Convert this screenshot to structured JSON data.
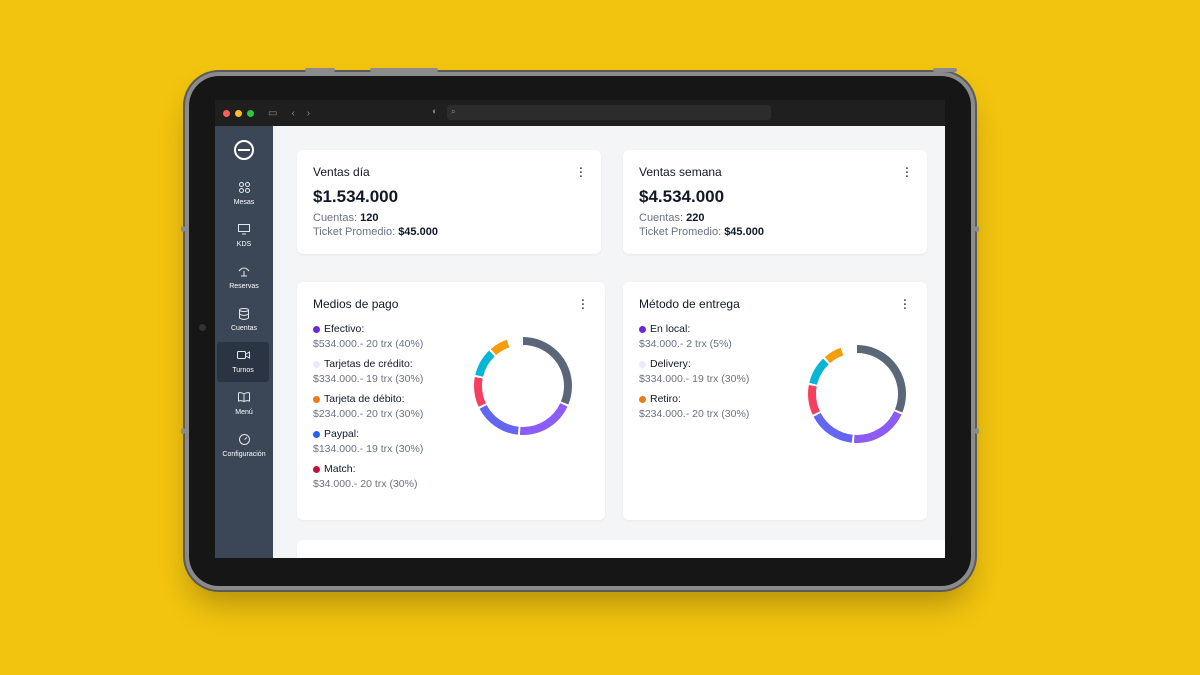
{
  "colors": {
    "background": "#f2c40f",
    "sidebar": "#3b4656",
    "donut": [
      "#5b6778",
      "#8b5cf6",
      "#6366f1",
      "#f43f5e",
      "#06b6d4",
      "#f59e0b"
    ]
  },
  "browser": {
    "traffic_lights": [
      "#ff5f57",
      "#febc2e",
      "#28c840"
    ]
  },
  "sidebar": {
    "items": [
      {
        "label": "Mesas",
        "icon": "grid-icon"
      },
      {
        "label": "KDS",
        "icon": "monitor-icon"
      },
      {
        "label": "Reservas",
        "icon": "cloche-icon"
      },
      {
        "label": "Cuentas",
        "icon": "database-icon"
      },
      {
        "label": "Turnos",
        "icon": "video-icon"
      },
      {
        "label": "Menú",
        "icon": "book-icon"
      },
      {
        "label": "Configuración",
        "icon": "gauge-icon"
      }
    ]
  },
  "cards": {
    "ventas_dia": {
      "title": "Ventas día",
      "value": "$1.534.000",
      "cuentas_label": "Cuentas:",
      "cuentas_value": "120",
      "ticket_label": "Ticket Promedio:",
      "ticket_value": "$45.000"
    },
    "ventas_semana": {
      "title": "Ventas semana",
      "value": "$4.534.000",
      "cuentas_label": "Cuentas:",
      "cuentas_value": "220",
      "ticket_label": "Ticket Promedio:",
      "ticket_value": "$45.000"
    },
    "medios_pago": {
      "title": "Medios de pago",
      "items": [
        {
          "name": "Efectivo:",
          "value": "$534.000.- 20 trx (40%)",
          "color": "#6d28d9"
        },
        {
          "name": "Tarjetas de crédito:",
          "value": "$334.000.- 19 trx (30%)",
          "color": "#ede9fe"
        },
        {
          "name": "Tarjeta de débito:",
          "value": "$234.000.- 20 trx (30%)",
          "color": "#ea7a1d"
        },
        {
          "name": "Paypal:",
          "value": "$134.000.- 19 trx (30%)",
          "color": "#2563eb"
        },
        {
          "name": "Match:",
          "value": "$34.000.- 20 trx (30%)",
          "color": "#be123c"
        }
      ]
    },
    "metodo_entrega": {
      "title": "Método de entrega",
      "items": [
        {
          "name": "En local:",
          "value": "$34.000.- 2 trx (5%)",
          "color": "#6d28d9"
        },
        {
          "name": "Delivery:",
          "value": "$334.000.- 19 trx (30%)",
          "color": "#ede9fe"
        },
        {
          "name": "Retiro:",
          "value": "$234.000.- 20 trx (30%)",
          "color": "#ea7a1d"
        }
      ]
    }
  }
}
